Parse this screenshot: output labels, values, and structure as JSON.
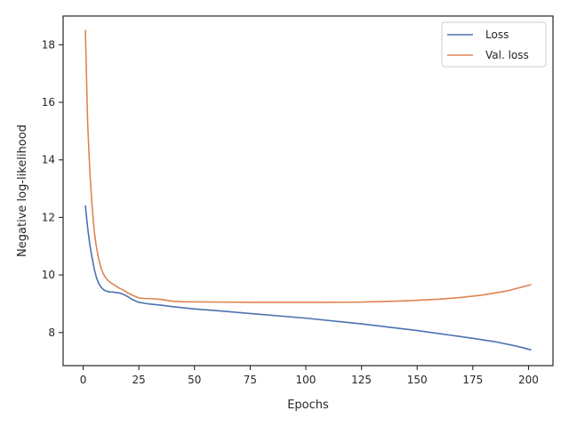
{
  "chart_data": {
    "type": "line",
    "title": "",
    "xlabel": "Epochs",
    "ylabel": "Negative log-likelihood",
    "xlim": [
      -9,
      211
    ],
    "ylim": [
      6.85,
      19.0
    ],
    "xticks": [
      0,
      25,
      50,
      75,
      100,
      125,
      150,
      175,
      200
    ],
    "yticks": [
      8,
      10,
      12,
      14,
      16,
      18
    ],
    "grid": false,
    "legend_position": "top-right",
    "series": [
      {
        "name": "Loss",
        "color": "#4c72b0",
        "x": [
          1,
          2,
          3,
          4,
          5,
          6,
          7,
          8,
          9,
          10,
          11,
          12,
          14,
          16,
          18,
          20,
          22,
          25,
          28,
          30,
          35,
          40,
          50,
          60,
          75,
          100,
          125,
          150,
          160,
          175,
          185,
          195,
          201
        ],
        "y": [
          12.4,
          11.65,
          11.05,
          10.6,
          10.2,
          9.9,
          9.7,
          9.58,
          9.5,
          9.45,
          9.43,
          9.41,
          9.4,
          9.38,
          9.33,
          9.25,
          9.15,
          9.05,
          9.01,
          8.99,
          8.95,
          8.9,
          8.82,
          8.76,
          8.66,
          8.5,
          8.3,
          8.07,
          7.96,
          7.8,
          7.68,
          7.52,
          7.4
        ]
      },
      {
        "name": "Val. loss",
        "color": "#dd8452",
        "x": [
          1,
          2,
          3,
          4,
          5,
          6,
          7,
          8,
          9,
          10,
          11,
          12,
          14,
          16,
          18,
          20,
          22,
          25,
          28,
          30,
          35,
          40,
          45,
          60,
          75,
          100,
          110,
          125,
          140,
          150,
          160,
          170,
          180,
          190,
          195,
          201
        ],
        "y": [
          18.5,
          15.3,
          13.6,
          12.4,
          11.5,
          10.95,
          10.55,
          10.25,
          10.05,
          9.92,
          9.82,
          9.75,
          9.65,
          9.55,
          9.48,
          9.38,
          9.3,
          9.2,
          9.18,
          9.18,
          9.15,
          9.09,
          9.07,
          9.06,
          9.05,
          9.05,
          9.05,
          9.06,
          9.09,
          9.12,
          9.16,
          9.22,
          9.31,
          9.44,
          9.54,
          9.66
        ]
      }
    ]
  }
}
